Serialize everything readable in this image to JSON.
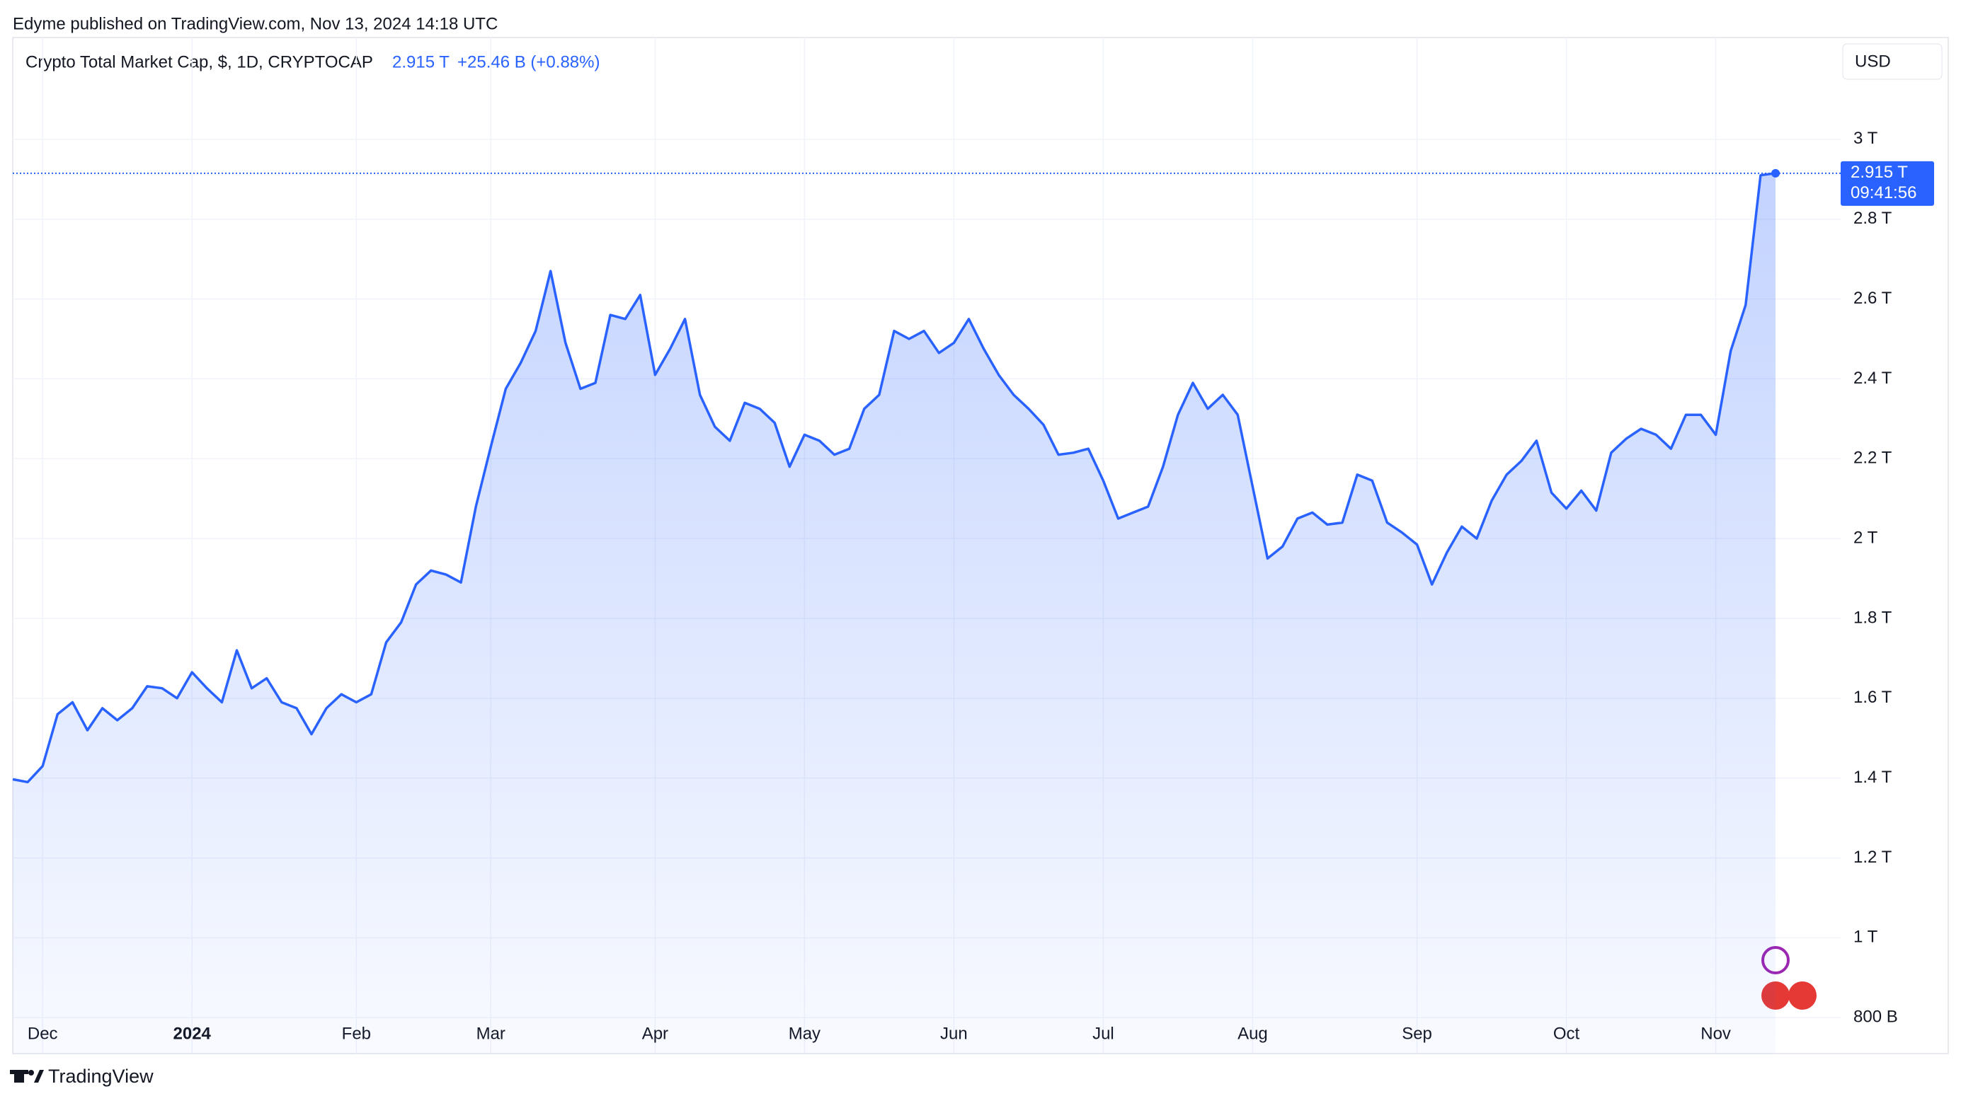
{
  "header": {
    "publisher": "Edyme published on TradingView.com, Nov 13, 2024 14:18 UTC",
    "symbol": "Crypto Total Market Cap, $, 1D, CRYPTOCAP",
    "price": "2.915 T",
    "change": "+25.46 B (+0.88%)",
    "currency": "USD",
    "countdown": "09:41:56"
  },
  "footer": {
    "brand": "TradingView"
  },
  "chart_data": {
    "type": "area",
    "color": "#2962ff",
    "grid": true,
    "last_price_label": "2.915 T",
    "categories": [
      null,
      null,
      "Dec",
      null,
      null,
      null,
      null,
      null,
      null,
      null,
      null,
      null,
      "2024",
      null,
      null,
      null,
      null,
      null,
      null,
      null,
      null,
      null,
      null,
      "Feb",
      null,
      null,
      null,
      null,
      null,
      null,
      null,
      null,
      "Mar",
      null,
      null,
      null,
      null,
      null,
      null,
      null,
      null,
      null,
      null,
      "Apr",
      null,
      null,
      null,
      null,
      null,
      null,
      null,
      null,
      null,
      "May",
      null,
      null,
      null,
      null,
      null,
      null,
      null,
      null,
      null,
      "Jun",
      null,
      null,
      null,
      null,
      null,
      null,
      null,
      null,
      null,
      "Jul",
      null,
      null,
      null,
      null,
      null,
      null,
      null,
      null,
      null,
      "Aug",
      null,
      null,
      null,
      null,
      null,
      null,
      null,
      null,
      null,
      null,
      "Sep",
      null,
      null,
      null,
      null,
      null,
      null,
      null,
      null,
      null,
      "Oct",
      null,
      null,
      null,
      null,
      null,
      null,
      null,
      null,
      null,
      "Nov",
      null,
      null,
      null,
      null
    ],
    "series": [
      {
        "name": "Crypto Total Market Cap",
        "color": "#2962ff",
        "values": [
          1397,
          1390,
          1430,
          1560,
          1590,
          1520,
          1575,
          1545,
          1575,
          1630,
          1625,
          1600,
          1665,
          1625,
          1590,
          1720,
          1625,
          1650,
          1590,
          1575,
          1510,
          1575,
          1610,
          1590,
          1610,
          1740,
          1790,
          1885,
          1920,
          1910,
          1890,
          2080,
          2230,
          2375,
          2440,
          2520,
          2670,
          2490,
          2375,
          2390,
          2560,
          2550,
          2610,
          2410,
          2475,
          2550,
          2360,
          2280,
          2245,
          2340,
          2325,
          2290,
          2180,
          2260,
          2245,
          2210,
          2225,
          2325,
          2360,
          2520,
          2500,
          2520,
          2465,
          2490,
          2550,
          2475,
          2410,
          2360,
          2325,
          2285,
          2210,
          2215,
          2225,
          2145,
          2050,
          2065,
          2080,
          2180,
          2310,
          2390,
          2325,
          2360,
          2310,
          2130,
          1950,
          1980,
          2050,
          2065,
          2035,
          2040,
          2160,
          2145,
          2040,
          2015,
          1985,
          1885,
          1965,
          2030,
          2000,
          2095,
          2160,
          2195,
          2245,
          2115,
          2075,
          2120,
          2070,
          2215,
          2250,
          2275,
          2260,
          2225,
          2310,
          2310,
          2260,
          2470,
          2585,
          2910,
          2915
        ]
      }
    ],
    "ylim": [
      710,
      3255
    ],
    "yticks": [
      {
        "value": 800,
        "label": "800 B"
      },
      {
        "value": 1000,
        "label": "1 T"
      },
      {
        "value": 1200,
        "label": "1.2 T"
      },
      {
        "value": 1400,
        "label": "1.4 T"
      },
      {
        "value": 1600,
        "label": "1.6 T"
      },
      {
        "value": 1800,
        "label": "1.8 T"
      },
      {
        "value": 2000,
        "label": "2 T"
      },
      {
        "value": 2200,
        "label": "2.2 T"
      },
      {
        "value": 2400,
        "label": "2.4 T"
      },
      {
        "value": 2600,
        "label": "2.6 T"
      },
      {
        "value": 2800,
        "label": "2.8 T"
      },
      {
        "value": 3000,
        "label": "3 T"
      }
    ]
  }
}
